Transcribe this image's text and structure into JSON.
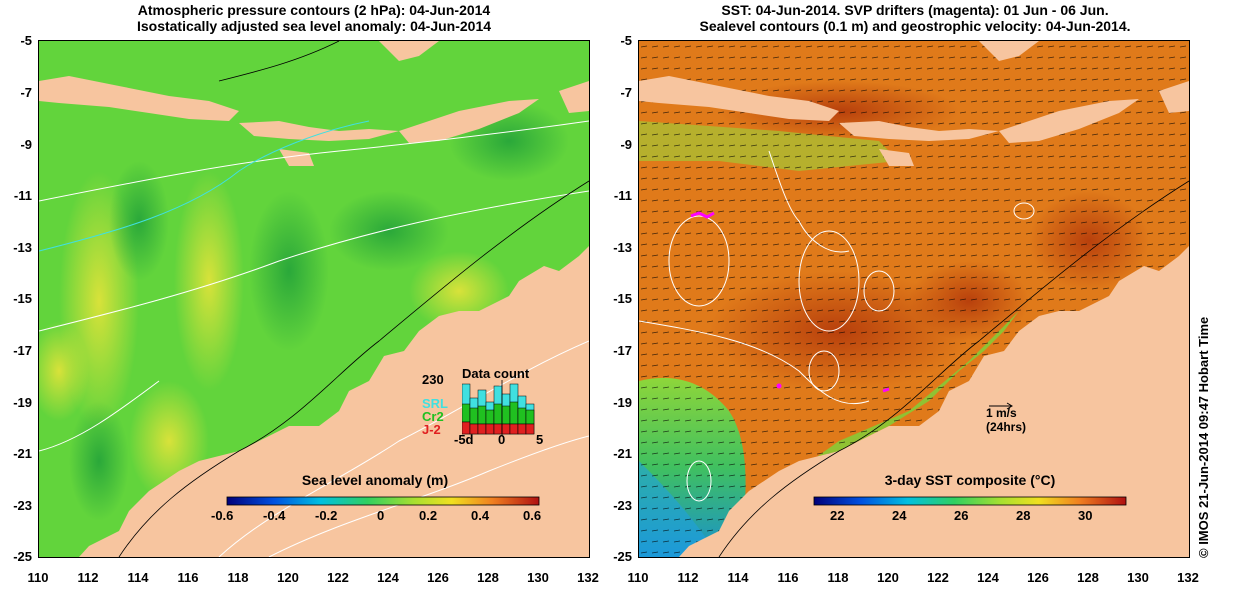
{
  "left_panel": {
    "title_line1": "Atmospheric pressure contours (2 hPa): 04-Jun-2014",
    "title_line2": "Isostatically adjusted sea level anomaly: 04-Jun-2014",
    "colorbar_label": "Sea level anomaly (m)",
    "colorbar_ticks": [
      "-0.6",
      "-0.4",
      "-0.2",
      "0",
      "0.2",
      "0.4",
      "0.6"
    ],
    "inset": {
      "title": "Data count",
      "max_label": "230",
      "legend": [
        {
          "label": "SRL",
          "color": "#40e0e0"
        },
        {
          "label": "Cr2",
          "color": "#20c020"
        },
        {
          "label": "J-2",
          "color": "#e02020"
        }
      ],
      "x_ticks": [
        "-5d",
        "0",
        "5"
      ]
    }
  },
  "right_panel": {
    "title_line1": "SST: 04-Jun-2014. SVP drifters (magenta): 01 Jun - 06 Jun.",
    "title_line2": "Sealevel contours (0.1 m) and geostrophic velocity: 04-Jun-2014.",
    "colorbar_label": "3-day SST composite (°C)",
    "colorbar_ticks": [
      "22",
      "24",
      "26",
      "28",
      "30"
    ],
    "scale_label": "1 m/s",
    "scale_sublabel": "(24hrs)"
  },
  "y_ticks": [
    "-5",
    "-7",
    "-9",
    "-11",
    "-13",
    "-15",
    "-17",
    "-19",
    "-21",
    "-23",
    "-25"
  ],
  "x_ticks": [
    "110",
    "112",
    "114",
    "116",
    "118",
    "120",
    "122",
    "124",
    "126",
    "128",
    "130",
    "132"
  ],
  "credit": "© IMOS 21-Jun-2014 09:47 Hobart Time",
  "colors": {
    "land": "#f7c59f",
    "ocean_green": "#5fd23a",
    "sst_orange": "#e07a1a",
    "sst_red": "#c04010"
  }
}
